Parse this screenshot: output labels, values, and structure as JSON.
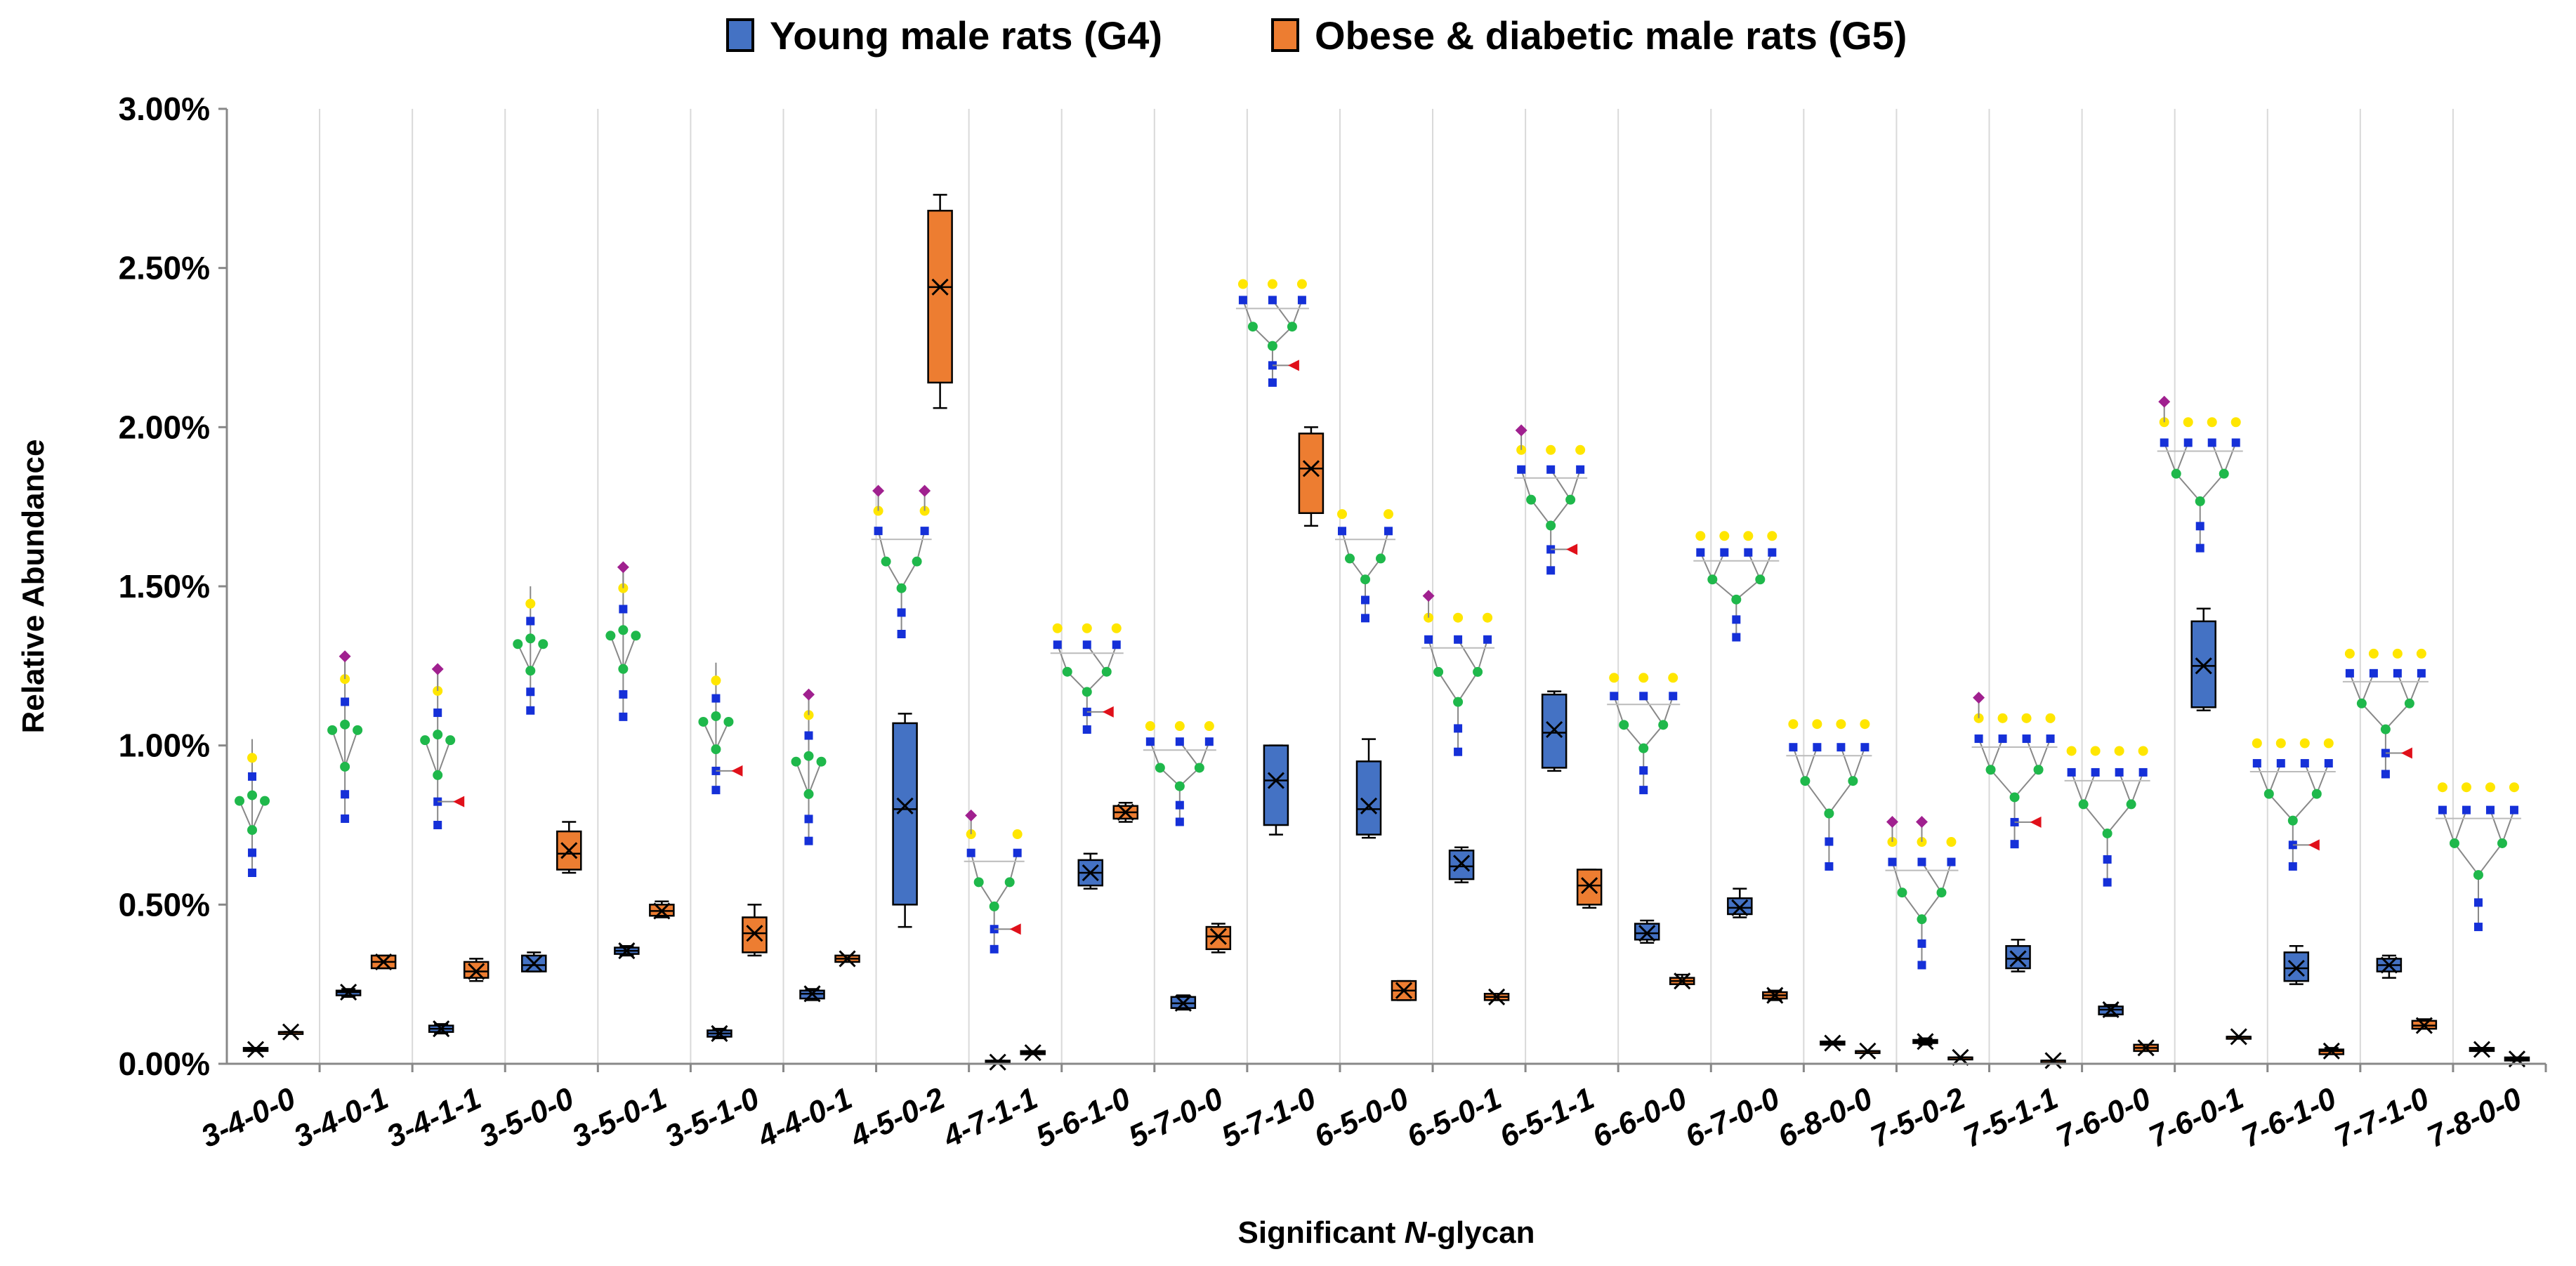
{
  "colors": {
    "g4": "#4472C4",
    "g5": "#ED7D31",
    "grid": "#D9D9D9",
    "glycan_gal": "#FFE600",
    "glycan_man": "#1FB84B",
    "glycan_glcnac": "#1530D8",
    "glycan_sia": "#A0208F",
    "glycan_fuc": "#E0101A"
  },
  "chart_data": {
    "type": "box",
    "xlabel_prefix": "Significant ",
    "xlabel_italic": "N",
    "xlabel_suffix": "-glycan",
    "ylabel": "Relative Abundance",
    "ylim": [
      0,
      3.0
    ],
    "yticks": [
      0,
      0.5,
      1.0,
      1.5,
      2.0,
      2.5,
      3.0
    ],
    "ytick_labels": [
      "0.00%",
      "0.50%",
      "1.00%",
      "1.50%",
      "2.00%",
      "2.50%",
      "3.00%"
    ],
    "grid": "vertical",
    "legend_position": "top-center",
    "categories": [
      "3-4-0-0",
      "3-4-0-1",
      "3-4-1-1",
      "3-5-0-0",
      "3-5-0-1",
      "3-5-1-0",
      "4-4-0-1",
      "4-5-0-2",
      "4-7-1-1",
      "5-6-1-0",
      "5-7-0-0",
      "5-7-1-0",
      "6-5-0-0",
      "6-5-0-1",
      "6-5-1-1",
      "6-6-0-0",
      "6-7-0-0",
      "6-8-0-0",
      "7-5-0-2",
      "7-5-1-1",
      "7-6-0-0",
      "7-6-0-1",
      "7-6-1-0",
      "7-7-1-0",
      "7-8-0-0"
    ],
    "series": [
      {
        "name": "Young male rats (G4)",
        "stats": [
          [
            0.04,
            0.04,
            0.045,
            0.05,
            0.05
          ],
          [
            0.21,
            0.215,
            0.225,
            0.23,
            0.235
          ],
          [
            0.095,
            0.1,
            0.11,
            0.12,
            0.125
          ],
          [
            0.29,
            0.29,
            0.31,
            0.34,
            0.35
          ],
          [
            0.34,
            0.345,
            0.355,
            0.365,
            0.37
          ],
          [
            0.08,
            0.085,
            0.095,
            0.105,
            0.11
          ],
          [
            0.2,
            0.205,
            0.22,
            0.23,
            0.235
          ],
          [
            0.43,
            0.5,
            0.8,
            1.07,
            1.1
          ],
          [
            0.0,
            0.0,
            0.005,
            0.01,
            0.01
          ],
          [
            0.55,
            0.56,
            0.6,
            0.64,
            0.66
          ],
          [
            0.17,
            0.175,
            0.19,
            0.21,
            0.215
          ],
          [
            0.72,
            0.75,
            0.89,
            1.0,
            1.0
          ],
          [
            0.71,
            0.72,
            0.8,
            0.95,
            1.02
          ],
          [
            0.57,
            0.58,
            0.62,
            0.67,
            0.68
          ],
          [
            0.92,
            0.93,
            1.04,
            1.16,
            1.17
          ],
          [
            0.38,
            0.39,
            0.41,
            0.44,
            0.45
          ],
          [
            0.46,
            0.47,
            0.49,
            0.52,
            0.55
          ],
          [
            0.06,
            0.06,
            0.065,
            0.07,
            0.07
          ],
          [
            0.06,
            0.065,
            0.07,
            0.075,
            0.08
          ],
          [
            0.29,
            0.3,
            0.33,
            0.37,
            0.39
          ],
          [
            0.15,
            0.155,
            0.17,
            0.18,
            0.185
          ],
          [
            1.11,
            1.12,
            1.25,
            1.39,
            1.43
          ],
          [
            0.25,
            0.26,
            0.3,
            0.35,
            0.37
          ],
          [
            0.27,
            0.29,
            0.31,
            0.33,
            0.34
          ],
          [
            0.04,
            0.04,
            0.045,
            0.05,
            0.05
          ]
        ],
        "means": [
          0.045,
          0.225,
          0.11,
          0.315,
          0.355,
          0.095,
          0.22,
          0.81,
          0.005,
          0.6,
          0.19,
          0.89,
          0.81,
          0.63,
          1.05,
          0.41,
          0.49,
          0.065,
          0.07,
          0.33,
          0.17,
          1.25,
          0.3,
          0.31,
          0.045
        ]
      },
      {
        "name": "Obese & diabetic male rats (G5)",
        "stats": [
          [
            0.1,
            0.1,
            0.1,
            0.1,
            0.1
          ],
          [
            0.3,
            0.3,
            0.32,
            0.34,
            0.34
          ],
          [
            0.26,
            0.27,
            0.29,
            0.32,
            0.33
          ],
          [
            0.6,
            0.61,
            0.66,
            0.73,
            0.76
          ],
          [
            0.46,
            0.465,
            0.48,
            0.5,
            0.51
          ],
          [
            0.34,
            0.35,
            0.41,
            0.46,
            0.5
          ],
          [
            0.32,
            0.32,
            0.33,
            0.34,
            0.34
          ],
          [
            2.06,
            2.14,
            2.44,
            2.68,
            2.73
          ],
          [
            0.03,
            0.03,
            0.035,
            0.04,
            0.04
          ],
          [
            0.76,
            0.77,
            0.79,
            0.81,
            0.82
          ],
          [
            0.35,
            0.36,
            0.4,
            0.43,
            0.44
          ],
          [
            1.69,
            1.73,
            1.87,
            1.98,
            2.0
          ],
          [
            0.2,
            0.2,
            0.23,
            0.26,
            0.26
          ],
          [
            0.2,
            0.2,
            0.21,
            0.22,
            0.22
          ],
          [
            0.49,
            0.5,
            0.56,
            0.61,
            0.61
          ],
          [
            0.25,
            0.25,
            0.26,
            0.27,
            0.28
          ],
          [
            0.2,
            0.205,
            0.215,
            0.225,
            0.23
          ],
          [
            0.04,
            0.04,
            0.04,
            0.04,
            0.04
          ],
          [
            0.02,
            0.02,
            0.02,
            0.02,
            0.02
          ],
          [
            0.01,
            0.01,
            0.01,
            0.01,
            0.01
          ],
          [
            0.04,
            0.04,
            0.05,
            0.06,
            0.06
          ],
          [
            0.085,
            0.085,
            0.085,
            0.085,
            0.085
          ],
          [
            0.03,
            0.03,
            0.04,
            0.045,
            0.05
          ],
          [
            0.11,
            0.11,
            0.12,
            0.135,
            0.14
          ],
          [
            0.01,
            0.01,
            0.015,
            0.02,
            0.02
          ]
        ],
        "means": [
          0.1,
          0.32,
          0.29,
          0.67,
          0.48,
          0.41,
          0.33,
          2.44,
          0.035,
          0.79,
          0.4,
          1.87,
          0.23,
          0.21,
          0.56,
          0.26,
          0.215,
          0.04,
          0.02,
          0.01,
          0.05,
          0.085,
          0.04,
          0.12,
          0.015
        ]
      }
    ],
    "glycans": [
      {
        "top": 1.02,
        "bottom": 0.6,
        "shape": "hybrid",
        "sialic": 0,
        "fuc": 0
      },
      {
        "top": 1.28,
        "bottom": 0.77,
        "shape": "hybrid",
        "sialic": 1,
        "fuc": 0
      },
      {
        "top": 1.24,
        "bottom": 0.75,
        "shape": "hybrid",
        "sialic": 1,
        "fuc": 1
      },
      {
        "top": 1.5,
        "bottom": 1.11,
        "shape": "hybrid",
        "sialic": 0,
        "fuc": 0
      },
      {
        "top": 1.56,
        "bottom": 1.09,
        "shape": "hybrid",
        "sialic": 1,
        "fuc": 0
      },
      {
        "top": 1.26,
        "bottom": 0.86,
        "shape": "hybrid",
        "sialic": 0,
        "fuc": 1
      },
      {
        "top": 1.16,
        "bottom": 0.7,
        "shape": "hybrid",
        "sialic": 1,
        "fuc": 0
      },
      {
        "top": 1.8,
        "bottom": 1.35,
        "shape": "bi",
        "sialic": 2,
        "fuc": 0
      },
      {
        "top": 0.78,
        "bottom": 0.36,
        "shape": "bi",
        "sialic": 1,
        "fuc": 1
      },
      {
        "top": 1.42,
        "bottom": 1.05,
        "shape": "tri",
        "sialic": 0,
        "fuc": 1
      },
      {
        "top": 1.11,
        "bottom": 0.76,
        "shape": "tri",
        "sialic": 0,
        "fuc": 0
      },
      {
        "top": 2.5,
        "bottom": 2.14,
        "shape": "tri",
        "sialic": 0,
        "fuc": 1
      },
      {
        "top": 1.78,
        "bottom": 1.4,
        "shape": "bi",
        "sialic": 0,
        "fuc": 0
      },
      {
        "top": 1.47,
        "bottom": 0.98,
        "shape": "tri",
        "sialic": 1,
        "fuc": 0
      },
      {
        "top": 1.99,
        "bottom": 1.55,
        "shape": "tri",
        "sialic": 1,
        "fuc": 1
      },
      {
        "top": 1.27,
        "bottom": 0.86,
        "shape": "tri",
        "sialic": 0,
        "fuc": 0
      },
      {
        "top": 1.71,
        "bottom": 1.34,
        "shape": "tetra",
        "sialic": 0,
        "fuc": 0
      },
      {
        "top": 1.14,
        "bottom": 0.62,
        "shape": "tetra",
        "sialic": 0,
        "fuc": 0
      },
      {
        "top": 0.76,
        "bottom": 0.31,
        "shape": "tri",
        "sialic": 2,
        "fuc": 0
      },
      {
        "top": 1.15,
        "bottom": 0.69,
        "shape": "tetra",
        "sialic": 1,
        "fuc": 1
      },
      {
        "top": 1.05,
        "bottom": 0.57,
        "shape": "tetra",
        "sialic": 0,
        "fuc": 0
      },
      {
        "top": 2.08,
        "bottom": 1.62,
        "shape": "tetra",
        "sialic": 1,
        "fuc": 0
      },
      {
        "top": 1.07,
        "bottom": 0.62,
        "shape": "tetra",
        "sialic": 0,
        "fuc": 1
      },
      {
        "top": 1.35,
        "bottom": 0.91,
        "shape": "tetra",
        "sialic": 0,
        "fuc": 1
      },
      {
        "top": 0.94,
        "bottom": 0.43,
        "shape": "tetra",
        "sialic": 0,
        "fuc": 0
      }
    ]
  }
}
